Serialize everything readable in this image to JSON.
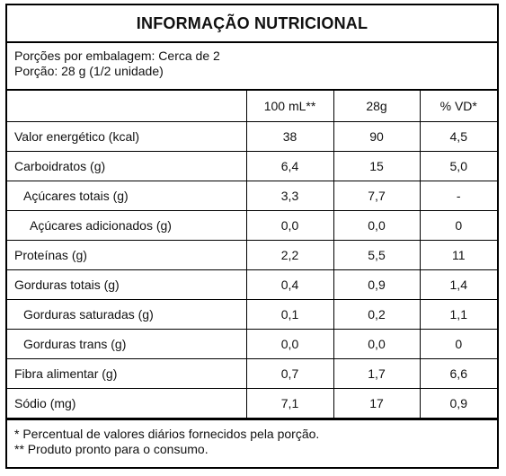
{
  "title": "INFORMAÇÃO NUTRICIONAL",
  "portions": {
    "per_package": "Porções por embalagem: Cerca de 2",
    "portion": "Porção: 28 g (1/2 unidade)"
  },
  "columns": [
    "",
    "100 mL**",
    "28g",
    "% VD*"
  ],
  "rows": [
    {
      "label": "Valor energético (kcal)",
      "v100": "38",
      "portion": "90",
      "vd": "4,5"
    },
    {
      "label": "Carboidratos (g)",
      "v100": "6,4",
      "portion": "15",
      "vd": "5,0"
    },
    {
      "label": "Açúcares totais (g)",
      "v100": "3,3",
      "portion": "7,7",
      "vd": "-"
    },
    {
      "label": "Açúcares adicionados (g)",
      "v100": "0,0",
      "portion": "0,0",
      "vd": "0"
    },
    {
      "label": "Proteínas (g)",
      "v100": "2,2",
      "portion": "5,5",
      "vd": "11"
    },
    {
      "label": "Gorduras totais (g)",
      "v100": "0,4",
      "portion": "0,9",
      "vd": "1,4"
    },
    {
      "label": "Gorduras saturadas (g)",
      "v100": "0,1",
      "portion": "0,2",
      "vd": "1,1"
    },
    {
      "label": "Gorduras trans (g)",
      "v100": "0,0",
      "portion": "0,0",
      "vd": "0"
    },
    {
      "label": "Fibra alimentar (g)",
      "v100": "0,7",
      "portion": "1,7",
      "vd": "6,6"
    },
    {
      "label": "Sódio (mg)",
      "v100": "7,1",
      "portion": "17",
      "vd": "0,9"
    }
  ],
  "footnotes": [
    "* Percentual de valores diários fornecidos pela porção.",
    "** Produto pronto para o consumo."
  ]
}
